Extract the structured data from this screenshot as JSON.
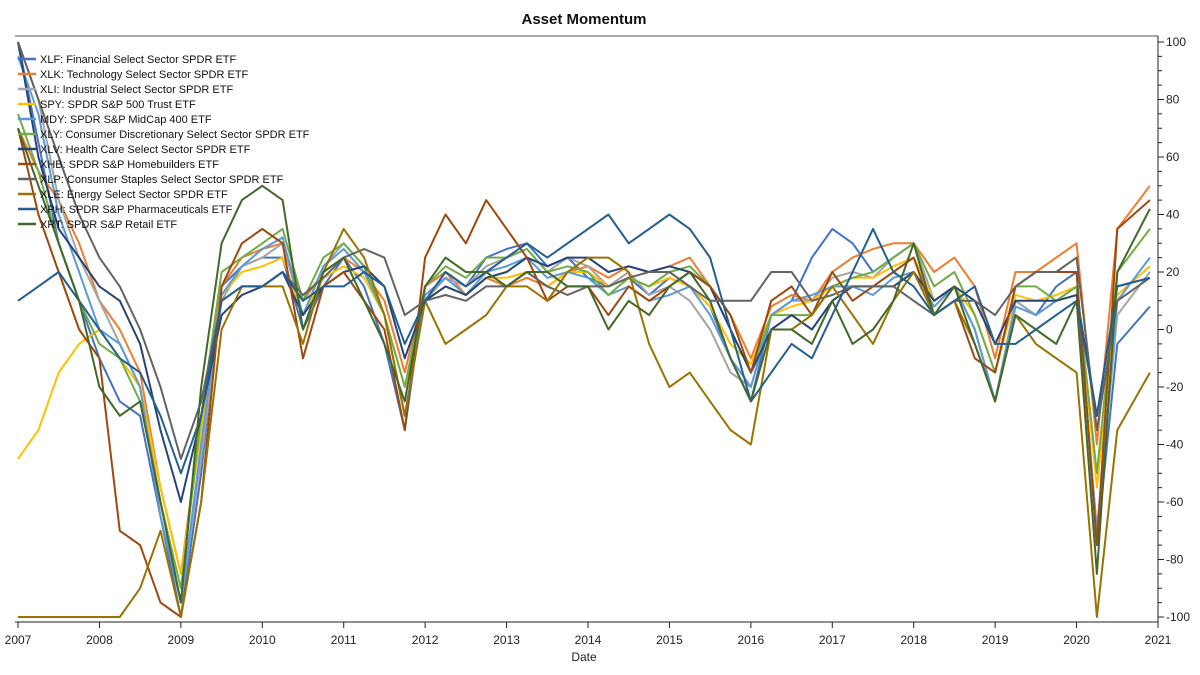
{
  "chart_data": {
    "type": "line",
    "title": "Asset Momentum",
    "xlabel": "Date",
    "ylabel": "",
    "xlim": [
      2007,
      2021
    ],
    "ylim": [
      -100,
      100
    ],
    "x_ticks": [
      "2007",
      "2008",
      "2009",
      "2010",
      "2011",
      "2012",
      "2013",
      "2014",
      "2015",
      "2016",
      "2017",
      "2018",
      "2019",
      "2020",
      "2021"
    ],
    "y_ticks": [
      "100",
      "80",
      "60",
      "40",
      "20",
      "0",
      "-20",
      "-40",
      "-60",
      "-80",
      "-100"
    ],
    "y_axis_side": "right",
    "grid": false,
    "legend_position": "top-left",
    "x": [
      2007.0,
      2007.25,
      2007.5,
      2007.75,
      2008.0,
      2008.25,
      2008.5,
      2008.75,
      2009.0,
      2009.25,
      2009.5,
      2009.75,
      2010.0,
      2010.25,
      2010.5,
      2010.75,
      2011.0,
      2011.25,
      2011.5,
      2011.75,
      2012.0,
      2012.25,
      2012.5,
      2012.75,
      2013.0,
      2013.25,
      2013.5,
      2013.75,
      2014.0,
      2014.25,
      2014.5,
      2014.75,
      2015.0,
      2015.25,
      2015.5,
      2015.75,
      2016.0,
      2016.25,
      2016.5,
      2016.75,
      2017.0,
      2017.25,
      2017.5,
      2017.75,
      2018.0,
      2018.25,
      2018.5,
      2018.75,
      2019.0,
      2019.25,
      2019.5,
      2019.75,
      2020.0,
      2020.25,
      2020.5,
      2020.9
    ],
    "series": [
      {
        "name": "XLF: Financial Select Sector SPDR ETF",
        "color": "#4472C4",
        "values": [
          100,
          65,
          30,
          10,
          -10,
          -25,
          -30,
          -65,
          -100,
          -50,
          15,
          22,
          25,
          25,
          0,
          15,
          25,
          15,
          -5,
          -35,
          15,
          20,
          15,
          25,
          28,
          30,
          22,
          25,
          18,
          15,
          18,
          12,
          18,
          15,
          8,
          -10,
          -25,
          5,
          10,
          25,
          35,
          30,
          20,
          25,
          30,
          10,
          15,
          0,
          -25,
          10,
          5,
          15,
          20,
          -75,
          -5,
          8
        ]
      },
      {
        "name": "XLK: Technology Select Sector SPDR ETF",
        "color": "#ED7D31",
        "values": [
          70,
          55,
          45,
          30,
          10,
          0,
          -15,
          -55,
          -85,
          -30,
          15,
          25,
          28,
          30,
          10,
          20,
          25,
          20,
          10,
          -15,
          15,
          20,
          12,
          18,
          15,
          18,
          15,
          20,
          22,
          18,
          22,
          20,
          22,
          25,
          15,
          5,
          -10,
          8,
          12,
          10,
          20,
          25,
          28,
          30,
          30,
          20,
          25,
          15,
          -10,
          20,
          20,
          25,
          30,
          -40,
          35,
          50
        ]
      },
      {
        "name": "XLI: Industrial Select Sector SPDR ETF",
        "color": "#A5A5A5",
        "values": [
          100,
          80,
          45,
          25,
          10,
          -5,
          -20,
          -60,
          -95,
          -45,
          10,
          22,
          25,
          30,
          5,
          22,
          30,
          22,
          5,
          -30,
          10,
          18,
          15,
          22,
          25,
          28,
          20,
          25,
          22,
          15,
          20,
          12,
          15,
          10,
          0,
          -15,
          -20,
          5,
          10,
          10,
          18,
          20,
          18,
          25,
          30,
          10,
          15,
          0,
          -25,
          10,
          5,
          10,
          15,
          -70,
          5,
          20
        ]
      },
      {
        "name": "SPY: SPDR S&P 500 Trust ETF",
        "color": "#FFC000",
        "values": [
          -45,
          -35,
          -15,
          -5,
          0,
          -10,
          -20,
          -55,
          -85,
          -35,
          12,
          20,
          22,
          25,
          5,
          18,
          22,
          18,
          5,
          -20,
          10,
          15,
          12,
          18,
          18,
          20,
          15,
          20,
          20,
          15,
          18,
          15,
          18,
          15,
          8,
          -5,
          -12,
          5,
          8,
          10,
          15,
          18,
          18,
          22,
          25,
          10,
          15,
          5,
          -15,
          12,
          10,
          12,
          15,
          -55,
          12,
          22
        ]
      },
      {
        "name": "MDY: SPDR S&P MidCap 400 ETF",
        "color": "#5B9BD5",
        "values": [
          95,
          75,
          40,
          20,
          0,
          -5,
          -20,
          -65,
          -95,
          -40,
          12,
          22,
          28,
          32,
          5,
          22,
          28,
          20,
          5,
          -30,
          12,
          18,
          12,
          20,
          22,
          25,
          18,
          20,
          18,
          12,
          15,
          10,
          12,
          15,
          5,
          -10,
          -20,
          5,
          10,
          12,
          15,
          15,
          12,
          18,
          20,
          8,
          15,
          0,
          -25,
          8,
          5,
          10,
          15,
          -70,
          10,
          25
        ]
      },
      {
        "name": "XLY: Consumer Discretionary Select Sector SPDR ETF",
        "color": "#70AD47",
        "values": [
          75,
          55,
          30,
          10,
          -5,
          -10,
          -25,
          -60,
          -90,
          -30,
          20,
          25,
          30,
          35,
          10,
          25,
          30,
          22,
          5,
          -20,
          15,
          22,
          18,
          25,
          25,
          28,
          20,
          22,
          20,
          12,
          18,
          15,
          20,
          22,
          15,
          0,
          -15,
          5,
          5,
          5,
          15,
          18,
          20,
          25,
          30,
          15,
          20,
          5,
          -15,
          15,
          15,
          10,
          15,
          -50,
          20,
          35
        ]
      },
      {
        "name": "XLV: Health Care Select Sector SPDR ETF",
        "color": "#264478",
        "values": [
          100,
          60,
          35,
          25,
          15,
          10,
          -5,
          -35,
          -60,
          -30,
          5,
          12,
          15,
          20,
          5,
          15,
          20,
          22,
          15,
          -10,
          10,
          15,
          12,
          18,
          20,
          25,
          22,
          25,
          25,
          20,
          22,
          20,
          22,
          20,
          15,
          0,
          -15,
          0,
          5,
          0,
          10,
          15,
          15,
          15,
          20,
          10,
          15,
          10,
          -5,
          10,
          10,
          10,
          12,
          -30,
          15,
          18
        ]
      },
      {
        "name": "XHB: SPDR S&P Homebuilders ETF",
        "color": "#9E480E",
        "values": [
          70,
          40,
          20,
          0,
          -10,
          -70,
          -75,
          -95,
          -100,
          -60,
          15,
          30,
          35,
          30,
          -10,
          15,
          20,
          10,
          0,
          -35,
          25,
          40,
          30,
          45,
          35,
          25,
          10,
          15,
          15,
          5,
          15,
          10,
          15,
          20,
          15,
          5,
          -15,
          10,
          15,
          5,
          20,
          10,
          15,
          20,
          25,
          5,
          10,
          -10,
          -15,
          15,
          20,
          20,
          20,
          -75,
          35,
          45
        ]
      },
      {
        "name": "XLP: Consumer Staples Select Sector SPDR ETF",
        "color": "#636363",
        "values": [
          100,
          80,
          60,
          40,
          25,
          15,
          0,
          -20,
          -45,
          -25,
          10,
          15,
          15,
          20,
          12,
          18,
          25,
          28,
          25,
          5,
          10,
          12,
          10,
          15,
          15,
          20,
          15,
          12,
          15,
          15,
          18,
          20,
          20,
          15,
          10,
          10,
          10,
          20,
          20,
          10,
          12,
          15,
          15,
          15,
          10,
          5,
          10,
          10,
          5,
          15,
          20,
          20,
          25,
          -35,
          10,
          18
        ]
      },
      {
        "name": "XLE: Energy Select Sector SPDR ETF",
        "color": "#997300",
        "values": [
          -100,
          -100,
          -100,
          -100,
          -100,
          -100,
          -90,
          -70,
          -100,
          -60,
          0,
          15,
          15,
          15,
          -5,
          20,
          35,
          25,
          5,
          -30,
          10,
          -5,
          0,
          5,
          15,
          15,
          10,
          20,
          25,
          25,
          20,
          -5,
          -20,
          -15,
          -25,
          -35,
          -40,
          0,
          0,
          5,
          15,
          5,
          -5,
          10,
          20,
          5,
          10,
          -5,
          -25,
          5,
          -5,
          -10,
          -15,
          -100,
          -35,
          -15
        ]
      },
      {
        "name": "XPH: SPDR S&P Pharmaceuticals ETF",
        "color": "#255E91",
        "values": [
          10,
          15,
          20,
          10,
          0,
          -10,
          -15,
          -30,
          -50,
          -30,
          10,
          15,
          15,
          20,
          10,
          15,
          15,
          20,
          15,
          -5,
          10,
          20,
          15,
          20,
          25,
          30,
          25,
          30,
          35,
          40,
          30,
          35,
          40,
          35,
          25,
          0,
          -25,
          -15,
          -5,
          -10,
          5,
          20,
          35,
          20,
          15,
          5,
          10,
          15,
          -5,
          -5,
          0,
          5,
          10,
          -30,
          15,
          18
        ]
      },
      {
        "name": "XRT: SPDR S&P Retail ETF",
        "color": "#43682B",
        "values": [
          70,
          50,
          30,
          10,
          -20,
          -30,
          -25,
          -60,
          -95,
          -20,
          30,
          45,
          50,
          45,
          0,
          20,
          25,
          10,
          -5,
          -25,
          15,
          25,
          20,
          20,
          15,
          20,
          20,
          15,
          15,
          0,
          10,
          5,
          15,
          20,
          10,
          -10,
          -25,
          0,
          0,
          -5,
          10,
          -5,
          0,
          10,
          30,
          5,
          15,
          -5,
          -25,
          5,
          0,
          -5,
          10,
          -85,
          20,
          42
        ]
      }
    ]
  }
}
